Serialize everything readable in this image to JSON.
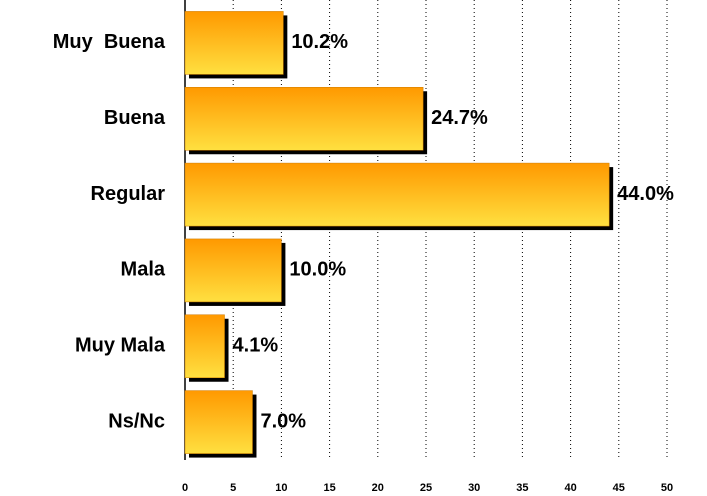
{
  "chart_data": {
    "type": "bar",
    "orientation": "horizontal",
    "categories": [
      "Muy  Buena",
      "Buena",
      "Regular",
      "Mala",
      "Muy Mala",
      "Ns/Nc"
    ],
    "values": [
      10.2,
      24.7,
      44.0,
      10.0,
      4.1,
      7.0
    ],
    "value_labels": [
      "10.2%",
      "24.7%",
      "44.0%",
      "10.0%",
      "4.1%",
      "7.0%"
    ],
    "color": "#ff9900",
    "xlim": [
      0,
      50
    ],
    "xticks": [
      0,
      5,
      10,
      15,
      20,
      25,
      30,
      35,
      40,
      45,
      50
    ],
    "grid": true
  }
}
